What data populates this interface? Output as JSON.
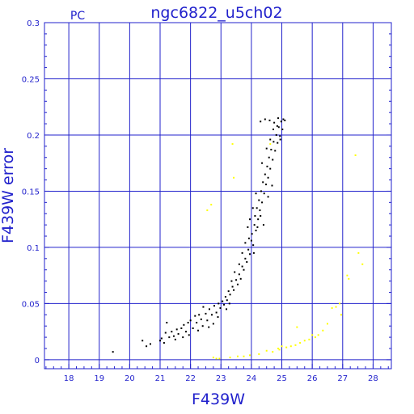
{
  "chart_data": {
    "type": "scatter",
    "title": "ngc6822_u5ch02",
    "corner_label": "PC",
    "xlabel": "F439W",
    "ylabel": "F439W error",
    "xlim": [
      17.2,
      28.6
    ],
    "ylim": [
      -0.008,
      0.3
    ],
    "x_ticks": [
      18,
      19,
      20,
      21,
      22,
      23,
      24,
      25,
      26,
      27,
      28
    ],
    "y_ticks": [
      0,
      0.05,
      0.1,
      0.15,
      0.2,
      0.25,
      0.3
    ],
    "y_tick_labels": [
      "0",
      "0.05",
      "0.1",
      "0.15",
      "0.2",
      "0.25",
      "0.3"
    ],
    "grid": true,
    "colors": {
      "axis": "#2222cc",
      "grid": "#2222cc",
      "main_points": "#000000",
      "flagged_points": "#ffff00"
    },
    "series": [
      {
        "color": "#000000",
        "points": [
          [
            19.45,
            0.007
          ],
          [
            20.42,
            0.017
          ],
          [
            20.55,
            0.012
          ],
          [
            20.68,
            0.014
          ],
          [
            21.0,
            0.017
          ],
          [
            21.05,
            0.019
          ],
          [
            21.13,
            0.015
          ],
          [
            21.18,
            0.024
          ],
          [
            21.22,
            0.033
          ],
          [
            21.3,
            0.02
          ],
          [
            21.38,
            0.025
          ],
          [
            21.45,
            0.021
          ],
          [
            21.55,
            0.027
          ],
          [
            21.6,
            0.023
          ],
          [
            21.7,
            0.028
          ],
          [
            21.78,
            0.031
          ],
          [
            21.85,
            0.025
          ],
          [
            21.92,
            0.033
          ],
          [
            22.0,
            0.035
          ],
          [
            22.08,
            0.028
          ],
          [
            22.15,
            0.039
          ],
          [
            22.2,
            0.033
          ],
          [
            22.28,
            0.04
          ],
          [
            22.35,
            0.036
          ],
          [
            22.42,
            0.047
          ],
          [
            22.5,
            0.041
          ],
          [
            22.55,
            0.035
          ],
          [
            22.62,
            0.045
          ],
          [
            22.7,
            0.04
          ],
          [
            22.78,
            0.048
          ],
          [
            22.85,
            0.042
          ],
          [
            22.92,
            0.05
          ],
          [
            22.98,
            0.046
          ],
          [
            23.05,
            0.052
          ],
          [
            23.1,
            0.049
          ],
          [
            23.15,
            0.056
          ],
          [
            23.2,
            0.053
          ],
          [
            23.25,
            0.061
          ],
          [
            23.3,
            0.058
          ],
          [
            23.38,
            0.065
          ],
          [
            23.42,
            0.062
          ],
          [
            23.5,
            0.071
          ],
          [
            23.55,
            0.067
          ],
          [
            23.6,
            0.076
          ],
          [
            23.65,
            0.072
          ],
          [
            23.7,
            0.083
          ],
          [
            23.75,
            0.08
          ],
          [
            23.8,
            0.09
          ],
          [
            23.85,
            0.087
          ],
          [
            23.9,
            0.098
          ],
          [
            23.95,
            0.094
          ],
          [
            24.0,
            0.106
          ],
          [
            24.02,
            0.112
          ],
          [
            24.06,
            0.102
          ],
          [
            24.1,
            0.12
          ],
          [
            24.12,
            0.128
          ],
          [
            24.15,
            0.115
          ],
          [
            24.18,
            0.135
          ],
          [
            24.22,
            0.125
          ],
          [
            24.25,
            0.142
          ],
          [
            24.28,
            0.133
          ],
          [
            24.32,
            0.15
          ],
          [
            24.35,
            0.14
          ],
          [
            24.38,
            0.158
          ],
          [
            24.42,
            0.148
          ],
          [
            24.45,
            0.165
          ],
          [
            24.48,
            0.156
          ],
          [
            24.52,
            0.172
          ],
          [
            24.55,
            0.162
          ],
          [
            24.58,
            0.18
          ],
          [
            24.62,
            0.17
          ],
          [
            24.65,
            0.187
          ],
          [
            24.7,
            0.178
          ],
          [
            24.73,
            0.194
          ],
          [
            24.78,
            0.186
          ],
          [
            24.82,
            0.2
          ],
          [
            24.86,
            0.193
          ],
          [
            24.9,
            0.207
          ],
          [
            24.94,
            0.199
          ],
          [
            24.98,
            0.212
          ],
          [
            25.02,
            0.205
          ],
          [
            25.05,
            0.214
          ],
          [
            24.3,
            0.212
          ],
          [
            24.45,
            0.214
          ],
          [
            24.6,
            0.213
          ],
          [
            24.75,
            0.211
          ],
          [
            24.88,
            0.215
          ],
          [
            25.1,
            0.213
          ],
          [
            23.95,
            0.125
          ],
          [
            24.05,
            0.135
          ],
          [
            24.15,
            0.148
          ],
          [
            24.08,
            0.095
          ],
          [
            23.92,
            0.108
          ],
          [
            24.2,
            0.118
          ],
          [
            24.3,
            0.128
          ],
          [
            24.4,
            0.12
          ],
          [
            24.55,
            0.145
          ],
          [
            24.68,
            0.155
          ],
          [
            24.35,
            0.175
          ],
          [
            24.5,
            0.188
          ],
          [
            24.62,
            0.196
          ],
          [
            24.72,
            0.205
          ],
          [
            24.85,
            0.208
          ],
          [
            24.95,
            0.196
          ],
          [
            23.7,
            0.095
          ],
          [
            23.8,
            0.104
          ],
          [
            23.88,
            0.118
          ],
          [
            23.6,
            0.085
          ],
          [
            23.45,
            0.078
          ],
          [
            23.35,
            0.07
          ],
          [
            23.28,
            0.05
          ],
          [
            23.18,
            0.045
          ],
          [
            22.9,
            0.038
          ],
          [
            22.75,
            0.032
          ],
          [
            22.6,
            0.029
          ],
          [
            22.4,
            0.03
          ],
          [
            22.25,
            0.026
          ],
          [
            21.95,
            0.022
          ],
          [
            21.75,
            0.02
          ],
          [
            21.5,
            0.018
          ]
        ]
      },
      {
        "color": "#ffff00",
        "points": [
          [
            22.55,
            0.133
          ],
          [
            22.68,
            0.138
          ],
          [
            23.38,
            0.192
          ],
          [
            23.42,
            0.162
          ],
          [
            24.62,
            0.192
          ],
          [
            27.42,
            0.182
          ],
          [
            27.52,
            0.095
          ],
          [
            27.65,
            0.085
          ],
          [
            27.15,
            0.075
          ],
          [
            27.2,
            0.072
          ],
          [
            26.9,
            0.05
          ],
          [
            26.78,
            0.047
          ],
          [
            26.65,
            0.046
          ],
          [
            26.95,
            0.04
          ],
          [
            26.5,
            0.032
          ],
          [
            26.35,
            0.026
          ],
          [
            26.2,
            0.022
          ],
          [
            26.1,
            0.02
          ],
          [
            26.0,
            0.022
          ],
          [
            25.9,
            0.018
          ],
          [
            25.75,
            0.017
          ],
          [
            25.6,
            0.015
          ],
          [
            25.5,
            0.029
          ],
          [
            25.45,
            0.013
          ],
          [
            25.3,
            0.012
          ],
          [
            25.15,
            0.011
          ],
          [
            25.0,
            0.012
          ],
          [
            24.92,
            0.009
          ],
          [
            24.88,
            0.01
          ],
          [
            24.7,
            0.007
          ],
          [
            24.5,
            0.008
          ],
          [
            24.25,
            0.005
          ],
          [
            23.95,
            0.004
          ],
          [
            23.75,
            0.003
          ],
          [
            23.55,
            0.003
          ],
          [
            23.3,
            0.002
          ],
          [
            22.95,
            0.001
          ],
          [
            22.85,
            0.001
          ],
          [
            22.75,
            0.002
          ]
        ]
      }
    ]
  }
}
